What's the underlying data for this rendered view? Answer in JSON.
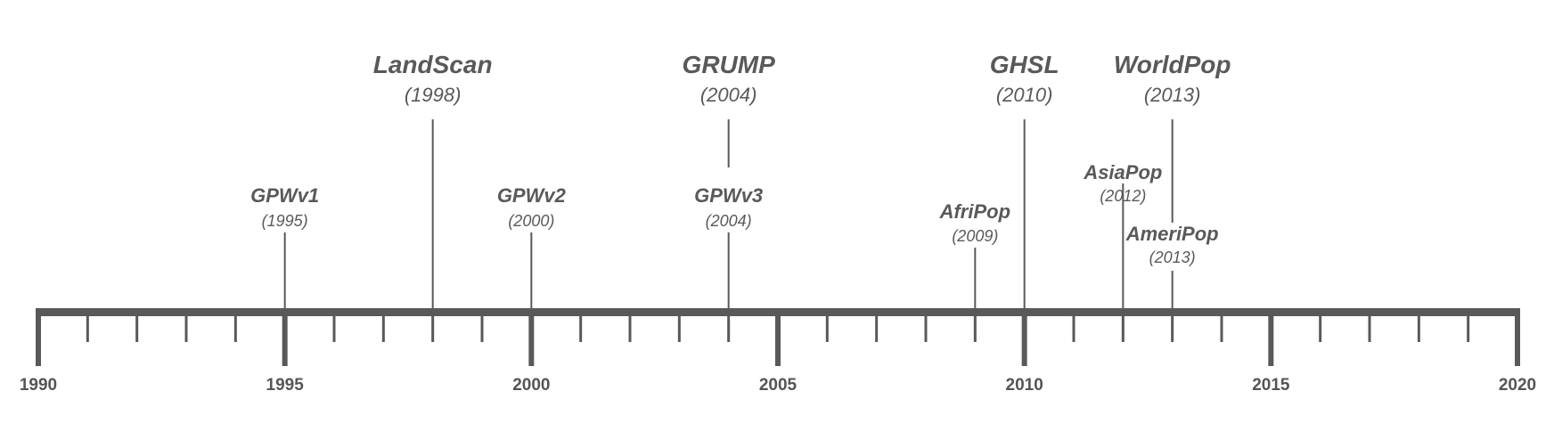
{
  "timeline": {
    "start_year": 1990,
    "end_year": 2020,
    "year_labels": [
      "1990",
      "1995",
      "2000",
      "2005",
      "2010",
      "2015",
      "2020"
    ],
    "color": "#595959",
    "events": [
      {
        "name": "GPWv1",
        "year_label": "(1995)",
        "year": 1995,
        "tier": "low"
      },
      {
        "name": "LandScan",
        "year_label": "(1998)",
        "year": 1998,
        "tier": "high"
      },
      {
        "name": "GPWv2",
        "year_label": "(2000)",
        "year": 2000,
        "tier": "low"
      },
      {
        "name": "GRUMP",
        "year_label": "(2004)",
        "year": 2004,
        "tier": "high"
      },
      {
        "name": "GPWv3",
        "year_label": "(2004)",
        "year": 2004,
        "tier": "low"
      },
      {
        "name": "AfriPop",
        "year_label": "(2009)",
        "year": 2009,
        "tier": "lowest"
      },
      {
        "name": "GHSL",
        "year_label": "(2010)",
        "year": 2010,
        "tier": "high"
      },
      {
        "name": "AsiaPop",
        "year_label": "(2012)",
        "year": 2012,
        "tier": "mid"
      },
      {
        "name": "WorldPop",
        "year_label": "(2013)",
        "year": 2013,
        "tier": "high"
      },
      {
        "name": "AmeriPop",
        "year_label": "(2013)",
        "year": 2013,
        "tier": "bottom"
      }
    ]
  }
}
